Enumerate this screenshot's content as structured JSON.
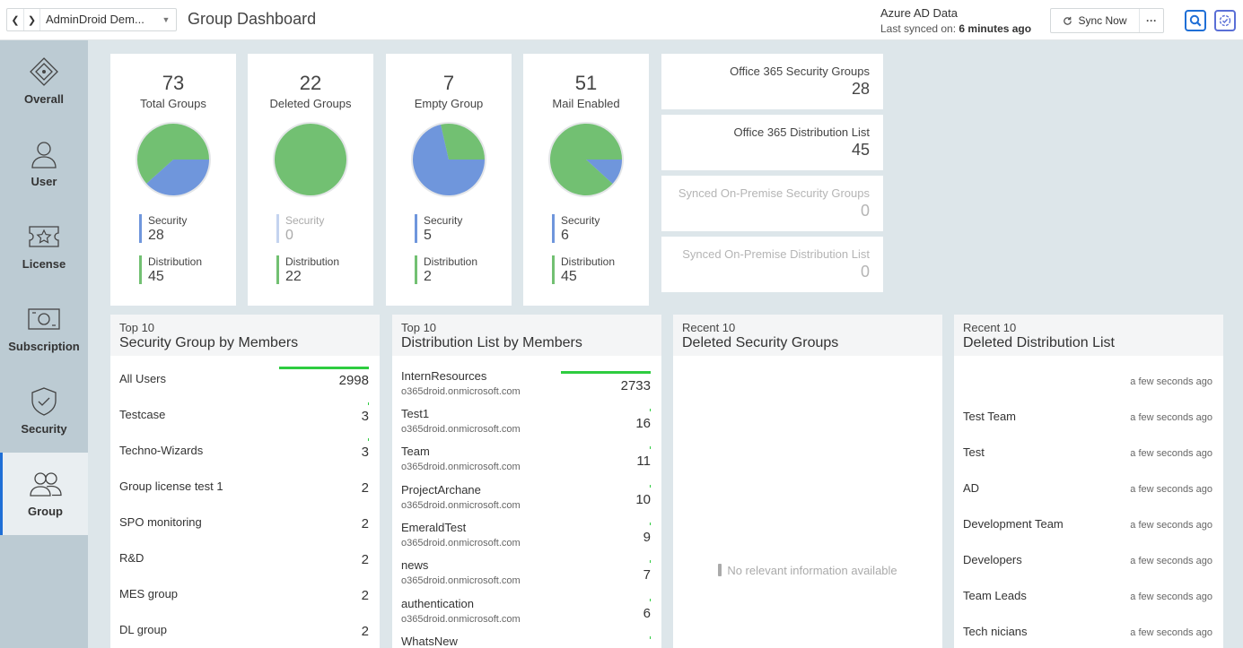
{
  "topbar": {
    "tenant": "AdminDroid Dem...",
    "page_title": "Group Dashboard",
    "source_name": "Azure AD Data",
    "last_synced_label": "Last synced on:",
    "last_synced_value": "6 minutes ago",
    "sync_label": "Sync Now",
    "more_label": "···"
  },
  "sidebar": {
    "items": [
      {
        "label": "Overall",
        "icon": "overall-icon"
      },
      {
        "label": "User",
        "icon": "user-icon"
      },
      {
        "label": "License",
        "icon": "license-icon"
      },
      {
        "label": "Subscription",
        "icon": "subscription-icon"
      },
      {
        "label": "Security",
        "icon": "security-icon"
      },
      {
        "label": "Group",
        "icon": "group-icon",
        "active": true
      }
    ]
  },
  "colors": {
    "security": "#6f96dc",
    "distribution": "#72c072",
    "accent": "#1f6fd6"
  },
  "stats": [
    {
      "count": "73",
      "label": "Total Groups",
      "security_label": "Security",
      "security": "28",
      "distribution_label": "Distribution",
      "distribution": "45"
    },
    {
      "count": "22",
      "label": "Deleted Groups",
      "security_label": "Security",
      "security": "0",
      "distribution_label": "Distribution",
      "distribution": "22"
    },
    {
      "count": "7",
      "label": "Empty Group",
      "security_label": "Security",
      "security": "5",
      "distribution_label": "Distribution",
      "distribution": "2"
    },
    {
      "count": "51",
      "label": "Mail Enabled",
      "security_label": "Security",
      "security": "6",
      "distribution_label": "Distribution",
      "distribution": "45"
    }
  ],
  "mini": [
    {
      "title": "Office 365 Security Groups",
      "value": "28"
    },
    {
      "title": "Office 365 Distribution List",
      "value": "45"
    },
    {
      "title": "Synced On-Premise Security Groups",
      "value": "0"
    },
    {
      "title": "Synced On-Premise Distribution List",
      "value": "0"
    }
  ],
  "security_top": {
    "sub": "Top 10",
    "title": "Security Group by Members",
    "rows": [
      {
        "name": "All Users",
        "count": "2998"
      },
      {
        "name": "Testcase",
        "count": "3"
      },
      {
        "name": "Techno-Wizards",
        "count": "3"
      },
      {
        "name": "Group license test 1",
        "count": "2"
      },
      {
        "name": "SPO monitoring",
        "count": "2"
      },
      {
        "name": "R&D",
        "count": "2"
      },
      {
        "name": "MES group",
        "count": "2"
      },
      {
        "name": "DL group",
        "count": "2"
      }
    ]
  },
  "distribution_top": {
    "sub": "Top 10",
    "title": "Distribution List by Members",
    "rows": [
      {
        "name": "InternResources",
        "email": "o365droid.onmicrosoft.com",
        "count": "2733"
      },
      {
        "name": "Test1",
        "email": "o365droid.onmicrosoft.com",
        "count": "16"
      },
      {
        "name": "Team",
        "email": "o365droid.onmicrosoft.com",
        "count": "11"
      },
      {
        "name": "ProjectArchane",
        "email": "o365droid.onmicrosoft.com",
        "count": "10"
      },
      {
        "name": "EmeraldTest",
        "email": "o365droid.onmicrosoft.com",
        "count": "9"
      },
      {
        "name": "news",
        "email": "o365droid.onmicrosoft.com",
        "count": "7"
      },
      {
        "name": "authentication",
        "email": "o365droid.onmicrosoft.com",
        "count": "6"
      },
      {
        "name": "WhatsNew",
        "email": "",
        "count": ""
      }
    ]
  },
  "deleted_security": {
    "sub": "Recent 10",
    "title": "Deleted Security Groups",
    "empty_message": "No relevant information available"
  },
  "deleted_distribution": {
    "sub": "Recent 10",
    "title": "Deleted Distribution List",
    "rows": [
      {
        "name": "",
        "time": "a few seconds ago"
      },
      {
        "name": "Test Team",
        "time": "a few seconds ago"
      },
      {
        "name": "Test",
        "time": "a few seconds ago"
      },
      {
        "name": "AD",
        "time": "a few seconds ago"
      },
      {
        "name": "Development Team",
        "time": "a few seconds ago"
      },
      {
        "name": "Developers",
        "time": "a few seconds ago"
      },
      {
        "name": "Team Leads",
        "time": "a few seconds ago"
      },
      {
        "name": "Tech nicians",
        "time": "a few seconds ago"
      }
    ]
  }
}
